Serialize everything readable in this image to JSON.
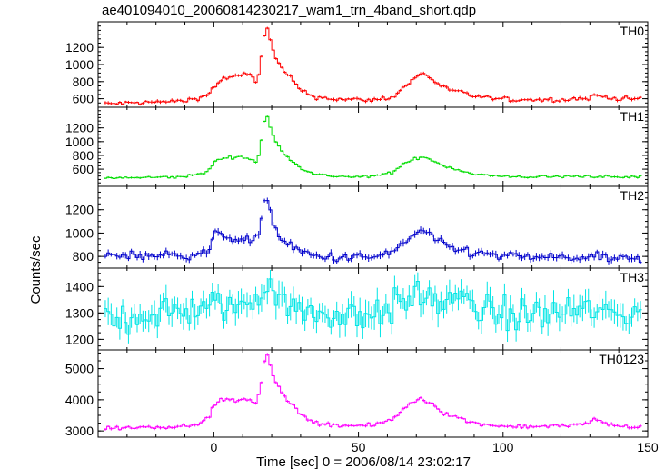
{
  "chart_data": {
    "type": "line",
    "title": "ae401094010_20060814230217_wam1_trn_4band_short.qdp",
    "xlabel": "Time [sec] 0 = 2006/08/14 23:02:17",
    "ylabel": "Counts/sec",
    "xlim": [
      -40,
      150
    ],
    "xticks": [
      0,
      50,
      100,
      150
    ],
    "panels": [
      {
        "name": "TH0",
        "color": "#ff0000",
        "ylim": [
          500,
          1500
        ],
        "yticks": [
          600,
          800,
          1000,
          1200
        ],
        "noise": 18,
        "profile": [
          [
            -38,
            540
          ],
          [
            -20,
            560
          ],
          [
            -10,
            575
          ],
          [
            -2,
            640
          ],
          [
            0,
            740
          ],
          [
            3,
            830
          ],
          [
            8,
            860
          ],
          [
            12,
            900
          ],
          [
            15,
            790
          ],
          [
            16,
            1000
          ],
          [
            17,
            1200
          ],
          [
            18,
            1450
          ],
          [
            19,
            1380
          ],
          [
            20,
            1200
          ],
          [
            22,
            1020
          ],
          [
            25,
            900
          ],
          [
            30,
            700
          ],
          [
            35,
            620
          ],
          [
            45,
            590
          ],
          [
            55,
            585
          ],
          [
            62,
            620
          ],
          [
            66,
            740
          ],
          [
            70,
            860
          ],
          [
            72,
            900
          ],
          [
            75,
            840
          ],
          [
            80,
            720
          ],
          [
            90,
            630
          ],
          [
            100,
            590
          ],
          [
            120,
            590
          ],
          [
            130,
            610
          ],
          [
            132,
            640
          ],
          [
            140,
            600
          ],
          [
            147,
            600
          ]
        ]
      },
      {
        "name": "TH1",
        "color": "#00dd00",
        "ylim": [
          350,
          1500
        ],
        "yticks": [
          600,
          800,
          1000,
          1200
        ],
        "noise": 14,
        "profile": [
          [
            -38,
            470
          ],
          [
            -20,
            480
          ],
          [
            -10,
            490
          ],
          [
            -2,
            560
          ],
          [
            0,
            700
          ],
          [
            3,
            760
          ],
          [
            8,
            780
          ],
          [
            12,
            760
          ],
          [
            15,
            700
          ],
          [
            16,
            900
          ],
          [
            17,
            1150
          ],
          [
            18,
            1420
          ],
          [
            19,
            1300
          ],
          [
            20,
            1120
          ],
          [
            22,
            960
          ],
          [
            25,
            800
          ],
          [
            30,
            620
          ],
          [
            35,
            520
          ],
          [
            45,
            490
          ],
          [
            55,
            490
          ],
          [
            62,
            560
          ],
          [
            66,
            680
          ],
          [
            70,
            760
          ],
          [
            72,
            780
          ],
          [
            75,
            740
          ],
          [
            80,
            640
          ],
          [
            90,
            530
          ],
          [
            100,
            490
          ],
          [
            120,
            490
          ],
          [
            130,
            500
          ],
          [
            140,
            480
          ],
          [
            147,
            490
          ]
        ]
      },
      {
        "name": "TH2",
        "color": "#0000cc",
        "ylim": [
          700,
          1400
        ],
        "yticks": [
          800,
          1000,
          1200
        ],
        "noise": 28,
        "profile": [
          [
            -38,
            810
          ],
          [
            -20,
            810
          ],
          [
            -10,
            810
          ],
          [
            -2,
            840
          ],
          [
            0,
            970
          ],
          [
            3,
            990
          ],
          [
            8,
            950
          ],
          [
            12,
            930
          ],
          [
            15,
            940
          ],
          [
            16,
            1080
          ],
          [
            17,
            1200
          ],
          [
            18,
            1320
          ],
          [
            19,
            1250
          ],
          [
            20,
            1130
          ],
          [
            22,
            1000
          ],
          [
            25,
            900
          ],
          [
            30,
            840
          ],
          [
            35,
            800
          ],
          [
            45,
            790
          ],
          [
            55,
            790
          ],
          [
            62,
            840
          ],
          [
            66,
            920
          ],
          [
            70,
            1000
          ],
          [
            72,
            1030
          ],
          [
            75,
            970
          ],
          [
            80,
            880
          ],
          [
            90,
            830
          ],
          [
            100,
            800
          ],
          [
            120,
            790
          ],
          [
            130,
            790
          ],
          [
            140,
            780
          ],
          [
            147,
            770
          ]
        ]
      },
      {
        "name": "TH3",
        "color": "#00e5e5",
        "ylim": [
          1160,
          1470
        ],
        "yticks": [
          1200,
          1300,
          1400
        ],
        "noise": 45,
        "profile": [
          [
            -38,
            1270
          ],
          [
            -20,
            1300
          ],
          [
            -10,
            1310
          ],
          [
            0,
            1320
          ],
          [
            8,
            1330
          ],
          [
            15,
            1340
          ],
          [
            17,
            1410
          ],
          [
            19,
            1430
          ],
          [
            21,
            1390
          ],
          [
            25,
            1340
          ],
          [
            30,
            1300
          ],
          [
            45,
            1290
          ],
          [
            60,
            1310
          ],
          [
            72,
            1370
          ],
          [
            78,
            1340
          ],
          [
            85,
            1350
          ],
          [
            95,
            1300
          ],
          [
            110,
            1290
          ],
          [
            125,
            1310
          ],
          [
            135,
            1300
          ],
          [
            147,
            1300
          ]
        ]
      },
      {
        "name": "TH0123",
        "color": "#ff00ff",
        "ylim": [
          2800,
          5600
        ],
        "yticks": [
          3000,
          4000,
          5000
        ],
        "noise": 45,
        "profile": [
          [
            -38,
            3080
          ],
          [
            -20,
            3130
          ],
          [
            -10,
            3160
          ],
          [
            -2,
            3350
          ],
          [
            0,
            3850
          ],
          [
            3,
            4000
          ],
          [
            8,
            3980
          ],
          [
            12,
            4000
          ],
          [
            15,
            3900
          ],
          [
            16,
            4300
          ],
          [
            17,
            4900
          ],
          [
            18,
            5500
          ],
          [
            19,
            5300
          ],
          [
            20,
            4900
          ],
          [
            22,
            4500
          ],
          [
            25,
            4050
          ],
          [
            30,
            3500
          ],
          [
            35,
            3270
          ],
          [
            45,
            3170
          ],
          [
            55,
            3170
          ],
          [
            62,
            3380
          ],
          [
            66,
            3750
          ],
          [
            70,
            4000
          ],
          [
            72,
            4050
          ],
          [
            75,
            3900
          ],
          [
            80,
            3550
          ],
          [
            90,
            3250
          ],
          [
            100,
            3150
          ],
          [
            120,
            3150
          ],
          [
            130,
            3250
          ],
          [
            132,
            3380
          ],
          [
            140,
            3130
          ],
          [
            147,
            3150
          ]
        ]
      }
    ]
  }
}
